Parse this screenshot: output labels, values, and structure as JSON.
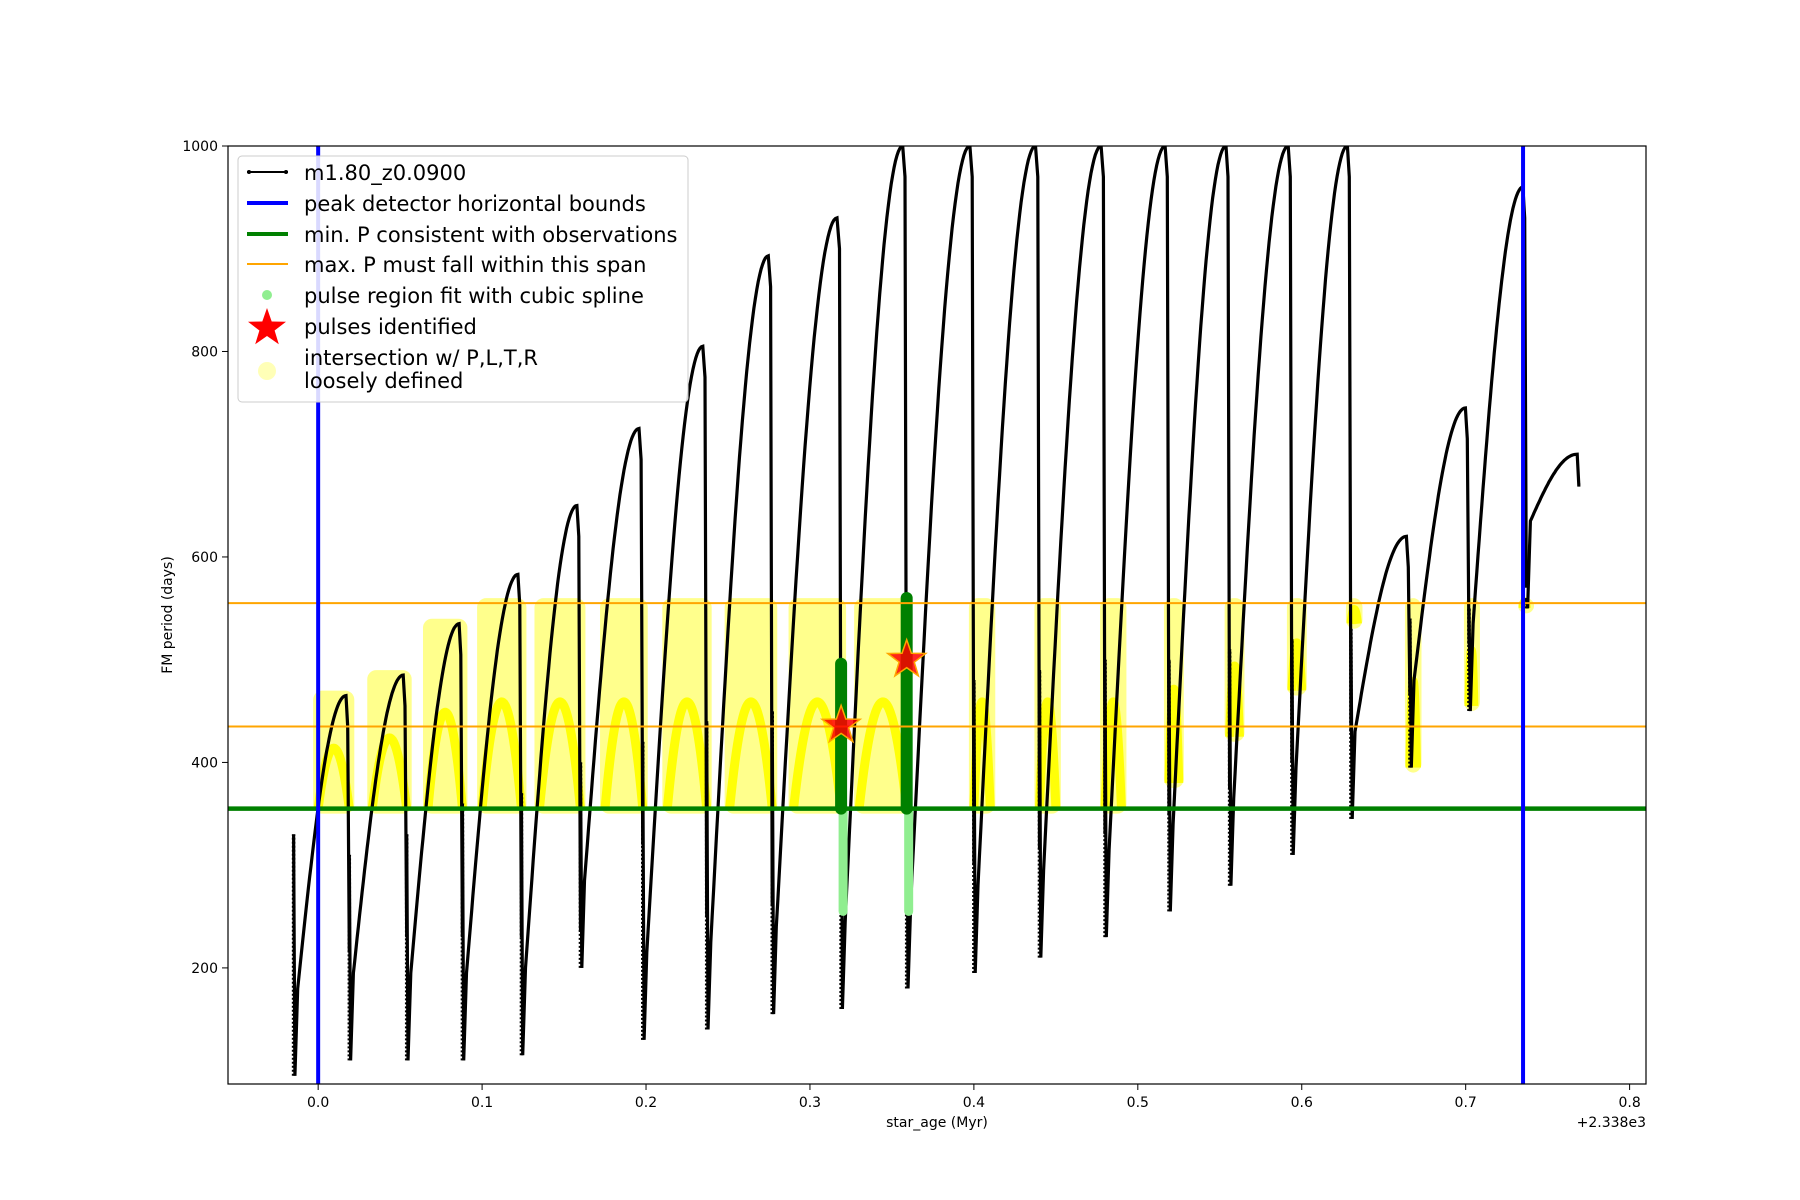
{
  "chart_data": {
    "type": "line",
    "xlabel": "star_age (Myr)",
    "ylabel": "FM period (days)",
    "x_offset_label": "+2.338e3",
    "xlim": [
      -0.055,
      0.81
    ],
    "ylim": [
      87,
      1000
    ],
    "xticks": [
      0.0,
      0.1,
      0.2,
      0.3,
      0.4,
      0.5,
      0.6,
      0.7,
      0.8
    ],
    "xtick_labels": [
      "0.0",
      "0.1",
      "0.2",
      "0.3",
      "0.4",
      "0.5",
      "0.6",
      "0.7",
      "0.8"
    ],
    "yticks": [
      200,
      400,
      600,
      800,
      1000
    ],
    "ytick_labels": [
      "200",
      "400",
      "600",
      "800",
      "1000"
    ],
    "grid": false,
    "legend_position": "upper-left",
    "colors": {
      "track": "#000000",
      "bounds": "#0000ff",
      "min_p": "#008000",
      "max_p": "#ffa500",
      "spline": "#90ee90",
      "spline_dark": "#008000",
      "pulses": "#ff0000",
      "pulse_edge": "#ffa500",
      "loose": "#ffff00"
    },
    "legend": [
      {
        "label": "m1.80_z0.0900",
        "kind": "line-marker",
        "color": "#000000"
      },
      {
        "label": "peak detector horizontal bounds",
        "kind": "thick-line",
        "color": "#0000ff"
      },
      {
        "label": "min. P consistent with observations",
        "kind": "thick-line",
        "color": "#008000"
      },
      {
        "label": "max. P must fall within this span",
        "kind": "thin-line",
        "color": "#ffa500"
      },
      {
        "label": "pulse region fit with cubic spline",
        "kind": "dot",
        "color": "#90ee90"
      },
      {
        "label": "pulses identified",
        "kind": "star",
        "color": "#ff0000"
      },
      {
        "label": "intersection w/ P,L,T,R",
        "label2": "loosely defined",
        "kind": "big-dot",
        "color": "#ffff99"
      }
    ],
    "vertical_bounds_x": [
      0.0,
      0.735
    ],
    "min_p_y": 355,
    "max_p_span_y": [
      435,
      555
    ],
    "pulses": [
      {
        "x": 0.319,
        "start": 95,
        "onset": 0.003,
        "peak": 436
      },
      {
        "x": 0.359,
        "start": 180,
        "onset": 0.003,
        "peak": 500
      }
    ],
    "loops": [
      {
        "start": -0.015,
        "end": 0.019,
        "min": 95,
        "peak": 465,
        "spike": 330
      },
      {
        "start": 0.019,
        "end": 0.054,
        "min": 110,
        "peak": 485,
        "spike": 310
      },
      {
        "start": 0.054,
        "end": 0.088,
        "min": 110,
        "peak": 535,
        "spike": 330
      },
      {
        "start": 0.088,
        "end": 0.124,
        "min": 110,
        "peak": 583,
        "spike": 360
      },
      {
        "start": 0.124,
        "end": 0.16,
        "min": 115,
        "peak": 650,
        "spike": 370
      },
      {
        "start": 0.16,
        "end": 0.198,
        "min": 200,
        "peak": 725,
        "spike": 400
      },
      {
        "start": 0.198,
        "end": 0.237,
        "min": 130,
        "peak": 805,
        "spike": 420
      },
      {
        "start": 0.237,
        "end": 0.277,
        "min": 140,
        "peak": 893,
        "spike": 440
      },
      {
        "start": 0.277,
        "end": 0.319,
        "min": 155,
        "peak": 930,
        "spike": 450
      },
      {
        "start": 0.319,
        "end": 0.359,
        "min": 160,
        "peak": 1000,
        "spike": 460
      },
      {
        "start": 0.359,
        "end": 0.4,
        "min": 180,
        "peak": 1000,
        "spike": 470
      },
      {
        "start": 0.4,
        "end": 0.44,
        "min": 195,
        "peak": 1000,
        "spike": 480
      },
      {
        "start": 0.44,
        "end": 0.48,
        "min": 210,
        "peak": 1000,
        "spike": 490
      },
      {
        "start": 0.48,
        "end": 0.519,
        "min": 230,
        "peak": 1000,
        "spike": 500
      },
      {
        "start": 0.519,
        "end": 0.556,
        "min": 255,
        "peak": 1000,
        "spike": 500
      },
      {
        "start": 0.556,
        "end": 0.594,
        "min": 280,
        "peak": 1000,
        "spike": 510
      },
      {
        "start": 0.594,
        "end": 0.63,
        "min": 310,
        "peak": 1000,
        "spike": 520
      },
      {
        "start": 0.63,
        "end": 0.666,
        "min": 345,
        "peak": 620,
        "spike": 530
      },
      {
        "start": 0.666,
        "end": 0.702,
        "min": 395,
        "peak": 745,
        "spike": 540
      },
      {
        "start": 0.702,
        "end": 0.737,
        "min": 450,
        "peak": 960,
        "spike": 550
      },
      {
        "start": 0.737,
        "end": 0.77,
        "min": 550,
        "peak": 700,
        "spike": 560
      }
    ],
    "yellow_regions": [
      {
        "x": [
          0.0,
          0.019
        ],
        "y": [
          355,
          465
        ]
      },
      {
        "x": [
          0.033,
          0.054
        ],
        "y": [
          355,
          485
        ]
      },
      {
        "x": [
          0.067,
          0.088
        ],
        "y": [
          355,
          535
        ]
      },
      {
        "x": [
          0.1,
          0.124
        ],
        "y": [
          355,
          555
        ]
      },
      {
        "x": [
          0.135,
          0.16
        ],
        "y": [
          355,
          555
        ]
      },
      {
        "x": [
          0.175,
          0.198
        ],
        "y": [
          355,
          555
        ]
      },
      {
        "x": [
          0.213,
          0.237
        ],
        "y": [
          355,
          555
        ]
      },
      {
        "x": [
          0.251,
          0.277
        ],
        "y": [
          355,
          555
        ]
      },
      {
        "x": [
          0.29,
          0.319
        ],
        "y": [
          355,
          555
        ]
      },
      {
        "x": [
          0.33,
          0.359
        ],
        "y": [
          355,
          555
        ]
      },
      {
        "x": [
          0.4,
          0.41
        ],
        "y": [
          355,
          555
        ]
      },
      {
        "x": [
          0.44,
          0.45
        ],
        "y": [
          355,
          555
        ]
      },
      {
        "x": [
          0.48,
          0.49
        ],
        "y": [
          355,
          555
        ]
      },
      {
        "x": [
          0.519,
          0.525
        ],
        "y": [
          380,
          555
        ]
      },
      {
        "x": [
          0.556,
          0.562
        ],
        "y": [
          425,
          555
        ]
      },
      {
        "x": [
          0.594,
          0.6
        ],
        "y": [
          470,
          555
        ]
      },
      {
        "x": [
          0.63,
          0.634
        ],
        "y": [
          535,
          555
        ]
      },
      {
        "x": [
          0.666,
          0.67
        ],
        "y": [
          395,
          555
        ]
      },
      {
        "x": [
          0.702,
          0.705
        ],
        "y": [
          455,
          555
        ]
      },
      {
        "x": [
          0.735,
          0.737
        ],
        "y": [
          550,
          555
        ]
      }
    ]
  }
}
